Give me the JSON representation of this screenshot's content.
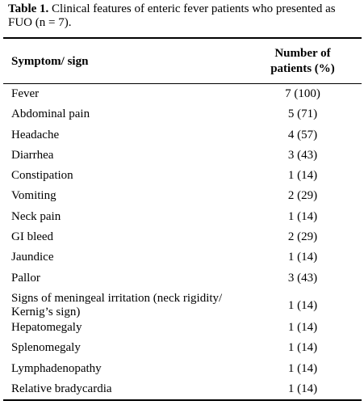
{
  "caption": {
    "label": "Table 1.",
    "text": " Clinical features of enteric fever patients who presented as FUO (n = 7)."
  },
  "header": {
    "symptom": "Symptom/ sign",
    "number_line1": "Number of",
    "number_line2": "patients (%)"
  },
  "rows": [
    {
      "symptom": "Fever",
      "value": "7 (100)"
    },
    {
      "symptom": "Abdominal pain",
      "value": "5 (71)"
    },
    {
      "symptom": "Headache",
      "value": "4 (57)"
    },
    {
      "symptom": "Diarrhea",
      "value": "3 (43)"
    },
    {
      "symptom": "Constipation",
      "value": "1 (14)"
    },
    {
      "symptom": "Vomiting",
      "value": "2 (29)"
    },
    {
      "symptom": "Neck pain",
      "value": "1 (14)"
    },
    {
      "symptom": "GI bleed",
      "value": "2 (29)"
    },
    {
      "symptom": "Jaundice",
      "value": "1 (14)"
    },
    {
      "symptom": "Pallor",
      "value": "3 (43)"
    },
    {
      "symptom": "Signs of meningeal irritation (neck rigidity/ Kernig’s sign)",
      "value": "1 (14)"
    },
    {
      "symptom": "Hepatomegaly",
      "value": "1 (14)"
    },
    {
      "symptom": "Splenomegaly",
      "value": "1 (14)"
    },
    {
      "symptom": "Lymphadenopathy",
      "value": "1 (14)"
    },
    {
      "symptom": "Relative bradycardia",
      "value": "1 (14)"
    }
  ]
}
